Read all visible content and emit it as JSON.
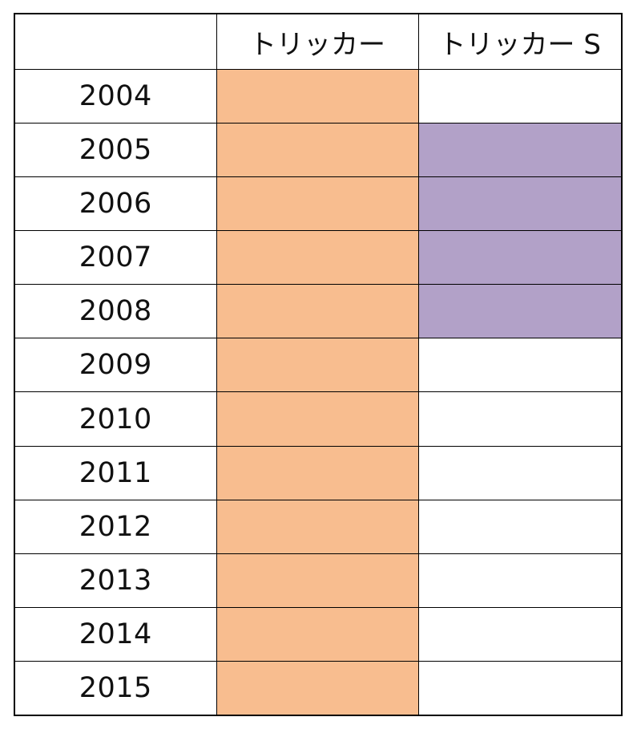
{
  "chart_data": {
    "type": "table",
    "columns": [
      "",
      "トリッカー",
      "トリッカー S"
    ],
    "years": [
      "2004",
      "2005",
      "2006",
      "2007",
      "2008",
      "2009",
      "2010",
      "2011",
      "2012",
      "2013",
      "2014",
      "2015"
    ],
    "series": [
      {
        "name": "トリッカー",
        "color": "#f8bd8f",
        "active": [
          true,
          true,
          true,
          true,
          true,
          true,
          true,
          true,
          true,
          true,
          true,
          true
        ]
      },
      {
        "name": "トリッカー S",
        "color": "#b2a1c8",
        "active": [
          false,
          true,
          true,
          true,
          true,
          false,
          false,
          false,
          false,
          false,
          false,
          false
        ]
      }
    ]
  }
}
